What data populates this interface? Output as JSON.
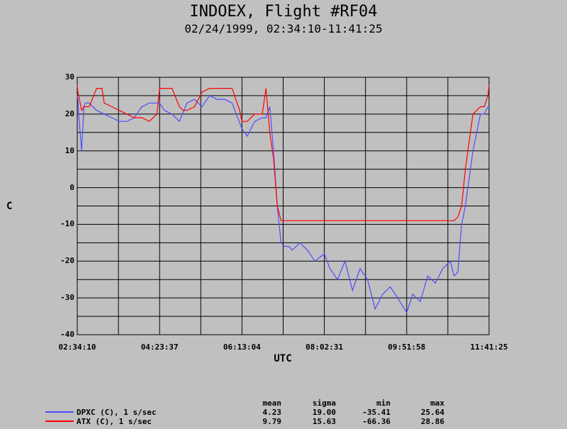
{
  "chart_data": {
    "type": "line",
    "title": "INDOEX, Flight #RF04",
    "subtitle": "02/24/1999, 02:34:10-11:41:25",
    "xlabel": "UTC",
    "ylabel": "C",
    "ylim": [
      -40,
      30
    ],
    "yticks": [
      "30",
      "20",
      "10",
      "0",
      "-10",
      "-20",
      "-30",
      "-40"
    ],
    "xlim": [
      "02:34:10",
      "11:41:25"
    ],
    "xticks": [
      "02:34:10",
      "04:23:37",
      "06:13:04",
      "08:02:31",
      "09:51:58",
      "11:41:25"
    ],
    "grid": true,
    "series": [
      {
        "name": "DPXC (C), 1 s/sec",
        "color": "#4d4dff",
        "x": [
          "02:34:10",
          "02:35:00",
          "02:36:00",
          "02:40:00",
          "02:43:00",
          "02:45:00",
          "02:47:00",
          "02:50:00",
          "03:00:00",
          "03:10:00",
          "03:20:00",
          "03:30:00",
          "03:40:00",
          "03:50:00",
          "04:00:00",
          "04:10:00",
          "04:23:37",
          "04:30:00",
          "04:40:00",
          "04:50:00",
          "05:00:00",
          "05:10:00",
          "05:20:00",
          "05:30:00",
          "05:40:00",
          "05:50:00",
          "06:00:00",
          "06:13:04",
          "06:20:00",
          "06:30:00",
          "06:40:00",
          "06:45:00",
          "06:50:00",
          "06:55:00",
          "07:00:00",
          "07:05:00",
          "07:10:00",
          "07:15:00",
          "07:20:00",
          "07:30:00",
          "07:40:00",
          "07:50:00",
          "08:02:31",
          "08:10:00",
          "08:20:00",
          "08:30:00",
          "08:40:00",
          "08:50:00",
          "09:00:00",
          "09:10:00",
          "09:20:00",
          "09:30:00",
          "09:40:00",
          "09:51:58",
          "10:00:00",
          "10:10:00",
          "10:20:00",
          "10:30:00",
          "10:40:00",
          "10:50:00",
          "10:55:00",
          "11:00:00",
          "11:05:00",
          "11:10:00",
          "11:20:00",
          "11:30:00",
          "11:35:00",
          "11:40:00",
          "11:41:25"
        ],
        "values": [
          25,
          24,
          20,
          10,
          22,
          23,
          23,
          23,
          21,
          20,
          19,
          18,
          18,
          19,
          22,
          23,
          23,
          21,
          20,
          18,
          23,
          24,
          22,
          25,
          24,
          24,
          23,
          16,
          14,
          18,
          19,
          19,
          22,
          10,
          -5,
          -15,
          -16,
          -16,
          -17,
          -15,
          -17,
          -20,
          -18,
          -22,
          -25,
          -20,
          -28,
          -22,
          -25,
          -33,
          -29,
          -27,
          -30,
          -34,
          -29,
          -31,
          -24,
          -26,
          -22,
          -20,
          -24,
          -23,
          -10,
          -5,
          10,
          20,
          20,
          22,
          22
        ]
      },
      {
        "name": "ATX (C), 1 s/sec",
        "color": "#ff0000",
        "x": [
          "02:34:10",
          "02:35:00",
          "02:40:00",
          "02:43:00",
          "02:50:00",
          "03:00:00",
          "03:07:00",
          "03:10:00",
          "03:20:00",
          "03:30:00",
          "03:40:00",
          "03:50:00",
          "04:00:00",
          "04:10:00",
          "04:20:00",
          "04:23:37",
          "04:30:00",
          "04:40:00",
          "04:50:00",
          "04:55:00",
          "05:00:00",
          "05:10:00",
          "05:20:00",
          "05:30:00",
          "05:40:00",
          "05:50:00",
          "06:00:00",
          "06:10:00",
          "06:13:04",
          "06:20:00",
          "06:30:00",
          "06:40:00",
          "06:45:00",
          "06:50:00",
          "06:55:00",
          "07:00:00",
          "07:05:00",
          "07:10:00",
          "07:20:00",
          "07:30:00",
          "07:40:00",
          "07:50:00",
          "08:02:31",
          "08:20:00",
          "08:40:00",
          "09:00:00",
          "09:20:00",
          "09:40:00",
          "09:51:58",
          "10:10:00",
          "10:30:00",
          "10:50:00",
          "10:55:00",
          "11:00:00",
          "11:05:00",
          "11:10:00",
          "11:20:00",
          "11:30:00",
          "11:35:00",
          "11:40:00",
          "11:41:25"
        ],
        "values": [
          28,
          26,
          21,
          22,
          22,
          27,
          27,
          23,
          22,
          21,
          20,
          19,
          19,
          18,
          20,
          27,
          27,
          27,
          22,
          21,
          21,
          22,
          26,
          27,
          27,
          27,
          27,
          21,
          18,
          18,
          20,
          20,
          27,
          15,
          8,
          -5,
          -9,
          -9,
          -9,
          -9,
          -9,
          -9,
          -9,
          -9,
          -9,
          -9,
          -9,
          -9,
          -9,
          -9,
          -9,
          -9,
          -9,
          -8,
          -5,
          5,
          20,
          22,
          22,
          25,
          28
        ]
      }
    ],
    "stats": {
      "headers": [
        "mean",
        "sigma",
        "min",
        "max"
      ],
      "rows": [
        {
          "label": "DPXC (C), 1 s/sec",
          "color": "#4d4dff",
          "mean": "4.23",
          "sigma": "19.00",
          "min": "-35.41",
          "max": "25.64"
        },
        {
          "label": "ATX (C), 1 s/sec",
          "color": "#ff0000",
          "mean": "9.79",
          "sigma": "15.63",
          "min": "-66.36",
          "max": "28.86"
        }
      ]
    }
  }
}
